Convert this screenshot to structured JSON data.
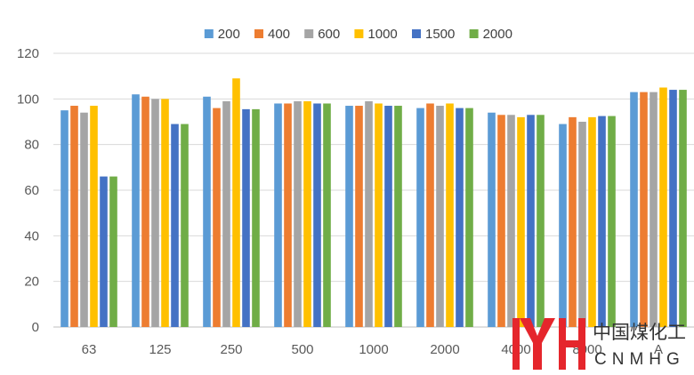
{
  "chart_data": {
    "type": "bar",
    "categories": [
      "63",
      "125",
      "250",
      "500",
      "1000",
      "2000",
      "4000",
      "8000",
      "A"
    ],
    "series": [
      {
        "name": "200",
        "color": "#5B9BD5",
        "values": [
          95,
          102,
          101,
          98,
          97,
          96,
          94,
          89,
          103
        ]
      },
      {
        "name": "400",
        "color": "#ED7D31",
        "values": [
          97,
          101,
          96,
          98,
          97,
          98,
          93,
          92,
          103
        ]
      },
      {
        "name": "600",
        "color": "#A5A5A5",
        "values": [
          94,
          100,
          99,
          99,
          99,
          97,
          93,
          90,
          103
        ]
      },
      {
        "name": "1000",
        "color": "#FFC000",
        "values": [
          97,
          100,
          109,
          99,
          98,
          98,
          92,
          92,
          105
        ]
      },
      {
        "name": "1500",
        "color": "#4472C4",
        "values": [
          66,
          89,
          95.5,
          98,
          97,
          96,
          93,
          92.5,
          104
        ]
      },
      {
        "name": "2000",
        "color": "#70AD47",
        "values": [
          66,
          89,
          95.5,
          98,
          97,
          96,
          93,
          92.5,
          104
        ]
      }
    ],
    "yticks": [
      0,
      20,
      40,
      60,
      80,
      100,
      120
    ],
    "ylim": [
      0,
      120
    ],
    "grid": true,
    "legend": "top"
  },
  "watermark": {
    "logo_letters": "YH",
    "name_cn": "中国煤化工",
    "name_en": "CNMHG",
    "color": "#E5262C"
  }
}
